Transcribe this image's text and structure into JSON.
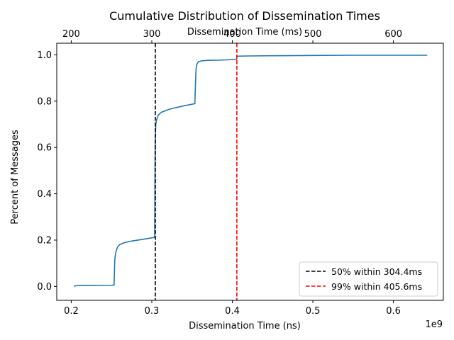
{
  "chart_data": {
    "type": "line",
    "title": "Cumulative Distribution of Dissemination Times",
    "xlabel": "Dissemination Time (ns)",
    "x_offset_label": "1e9",
    "ylabel": "Percent of Messages",
    "top_xlabel": "Dissemination Time (ms)",
    "xlim": [
      0.182,
      0.662
    ],
    "ylim": [
      -0.06,
      1.05
    ],
    "grid": false,
    "legend_position": "lower-right",
    "x_ticks": [
      {
        "value": 0.2,
        "label": "0.2"
      },
      {
        "value": 0.3,
        "label": "0.3"
      },
      {
        "value": 0.4,
        "label": "0.4"
      },
      {
        "value": 0.5,
        "label": "0.5"
      },
      {
        "value": 0.6,
        "label": "0.6"
      }
    ],
    "top_x_ticks": [
      {
        "value": 0.2,
        "label": "200"
      },
      {
        "value": 0.3,
        "label": "300"
      },
      {
        "value": 0.4,
        "label": "400"
      },
      {
        "value": 0.5,
        "label": "500"
      },
      {
        "value": 0.6,
        "label": "600"
      }
    ],
    "y_ticks": [
      {
        "value": 0.0,
        "label": "0.0"
      },
      {
        "value": 0.2,
        "label": "0.2"
      },
      {
        "value": 0.4,
        "label": "0.4"
      },
      {
        "value": 0.6,
        "label": "0.6"
      },
      {
        "value": 0.8,
        "label": "0.8"
      },
      {
        "value": 1.0,
        "label": "1.0"
      }
    ],
    "series": [
      {
        "color": "#1f77b4",
        "x": [
          0.2035,
          0.205,
          0.21,
          0.25,
          0.2532,
          0.2536,
          0.254,
          0.2545,
          0.2555,
          0.2575,
          0.26,
          0.265,
          0.275,
          0.29,
          0.3035,
          0.3037,
          0.304,
          0.3042,
          0.3045,
          0.305,
          0.306,
          0.308,
          0.312,
          0.32,
          0.33,
          0.34,
          0.3535,
          0.354,
          0.3545,
          0.355,
          0.356,
          0.358,
          0.362,
          0.37,
          0.385,
          0.4052,
          0.4058,
          0.407,
          0.42,
          0.45,
          0.5,
          0.55,
          0.6,
          0.642
        ],
        "y": [
          0.0,
          0.003,
          0.004,
          0.005,
          0.006,
          0.06,
          0.11,
          0.13,
          0.15,
          0.17,
          0.18,
          0.188,
          0.196,
          0.204,
          0.212,
          0.3,
          0.5,
          0.6,
          0.66,
          0.7,
          0.72,
          0.74,
          0.752,
          0.763,
          0.772,
          0.78,
          0.789,
          0.85,
          0.9,
          0.94,
          0.96,
          0.97,
          0.974,
          0.976,
          0.977,
          0.98,
          0.993,
          0.994,
          0.995,
          0.996,
          0.997,
          0.998,
          0.998,
          0.998
        ]
      }
    ],
    "vlines": [
      {
        "x": 0.3044,
        "color": "#000000",
        "label": "50%  within 304.4ms"
      },
      {
        "x": 0.4056,
        "color": "#ff0000",
        "label": "99%  within 405.6ms"
      }
    ]
  }
}
